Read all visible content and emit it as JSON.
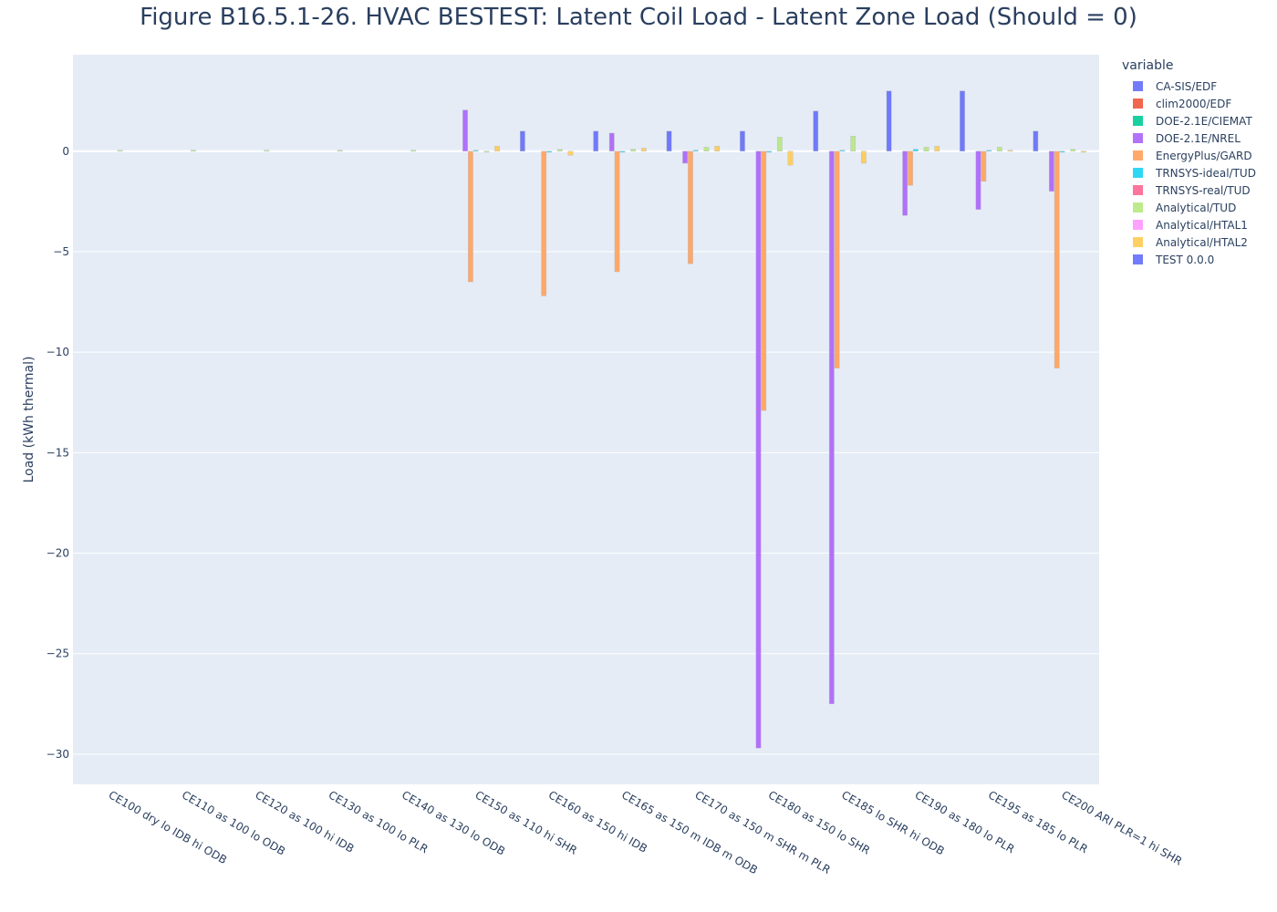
{
  "chart_data": {
    "type": "bar",
    "title": "Figure B16.5.1-26. HVAC BESTEST: Latent Coil Load - Latent Zone Load (Should = 0)",
    "ylabel": "Load (kWh thermal)",
    "xlabel": "",
    "ylim": [
      -31.5,
      4.8
    ],
    "yticks": [
      0,
      -5,
      -10,
      -15,
      -20,
      -25,
      -30
    ],
    "ytick_labels": [
      "0",
      "−5",
      "−10",
      "−15",
      "−20",
      "−25",
      "−30"
    ],
    "legend_title": "variable",
    "legend_position": "right",
    "categories": [
      "CE100 dry lo IDB hi ODB",
      "CE110 as 100 lo ODB",
      "CE120 as 100 hi IDB",
      "CE130 as 100 lo PLR",
      "CE140 as 130 lo ODB",
      "CE150 as 110 hi SHR",
      "CE160 as 150 hi IDB",
      "CE165 as 150 m IDB m ODB",
      "CE170 as 150 m SHR m PLR",
      "CE180 as 150 lo SHR",
      "CE185 lo SHR hi ODB",
      "CE190 as 180 lo PLR",
      "CE195 as 185 lo PLR",
      "CE200 ARI  PLR=1 hi SHR"
    ],
    "series": [
      {
        "name": "CA-SIS/EDF",
        "color": "#636efa",
        "values": [
          0,
          0,
          0,
          0,
          0,
          0,
          1.0,
          1.0,
          1.0,
          1.0,
          2.0,
          3.0,
          3.0,
          1.0
        ]
      },
      {
        "name": "clim2000/EDF",
        "color": "#EF553B",
        "values": [
          0,
          0,
          0,
          0,
          0,
          0,
          0,
          0,
          0,
          0,
          0,
          0,
          0,
          0
        ]
      },
      {
        "name": "DOE-2.1E/CIEMAT",
        "color": "#00cc96",
        "values": [
          0,
          0,
          0,
          0,
          0,
          0,
          0,
          0,
          0,
          0,
          0,
          0,
          0,
          0
        ]
      },
      {
        "name": "DOE-2.1E/NREL",
        "color": "#ab63fa",
        "values": [
          0,
          0,
          0,
          0,
          0,
          2.05,
          0,
          0.9,
          -0.6,
          -29.7,
          -27.5,
          -3.2,
          -2.9,
          -2.0
        ]
      },
      {
        "name": "EnergyPlus/GARD",
        "color": "#FFA15A",
        "values": [
          0,
          0,
          0,
          0,
          0,
          -6.5,
          -7.2,
          -6.0,
          -5.6,
          -12.9,
          -10.8,
          -1.7,
          -1.5,
          -10.8
        ]
      },
      {
        "name": "TRNSYS-ideal/TUD",
        "color": "#19d3f3",
        "values": [
          0,
          0,
          0,
          0,
          0,
          0.05,
          -0.05,
          -0.05,
          0.05,
          -0.05,
          0.05,
          0.1,
          0.05,
          -0.05
        ]
      },
      {
        "name": "TRNSYS-real/TUD",
        "color": "#FF6692",
        "values": [
          0,
          0,
          0,
          0,
          0,
          0,
          0,
          0,
          0,
          0,
          0,
          0,
          0,
          0
        ]
      },
      {
        "name": "Analytical/TUD",
        "color": "#B6E880",
        "values": [
          0.05,
          0.05,
          0.05,
          0.05,
          0.05,
          -0.05,
          0.1,
          0.1,
          0.2,
          0.7,
          0.75,
          0.2,
          0.2,
          0.1
        ]
      },
      {
        "name": "Analytical/HTAL1",
        "color": "#FF97FF",
        "values": [
          0,
          0,
          0,
          0,
          0,
          0,
          0,
          0,
          0,
          0,
          0,
          0,
          0,
          0
        ]
      },
      {
        "name": "Analytical/HTAL2",
        "color": "#FECB52",
        "values": [
          0,
          0,
          0,
          0,
          0,
          0.25,
          -0.2,
          0.15,
          0.25,
          -0.7,
          -0.6,
          0.25,
          0.05,
          -0.05
        ]
      },
      {
        "name": "TEST 0.0.0",
        "color": "#636efa",
        "values": [
          0,
          0,
          0,
          0,
          0,
          0,
          0,
          0,
          0,
          0,
          0,
          0,
          0,
          0
        ]
      }
    ]
  }
}
